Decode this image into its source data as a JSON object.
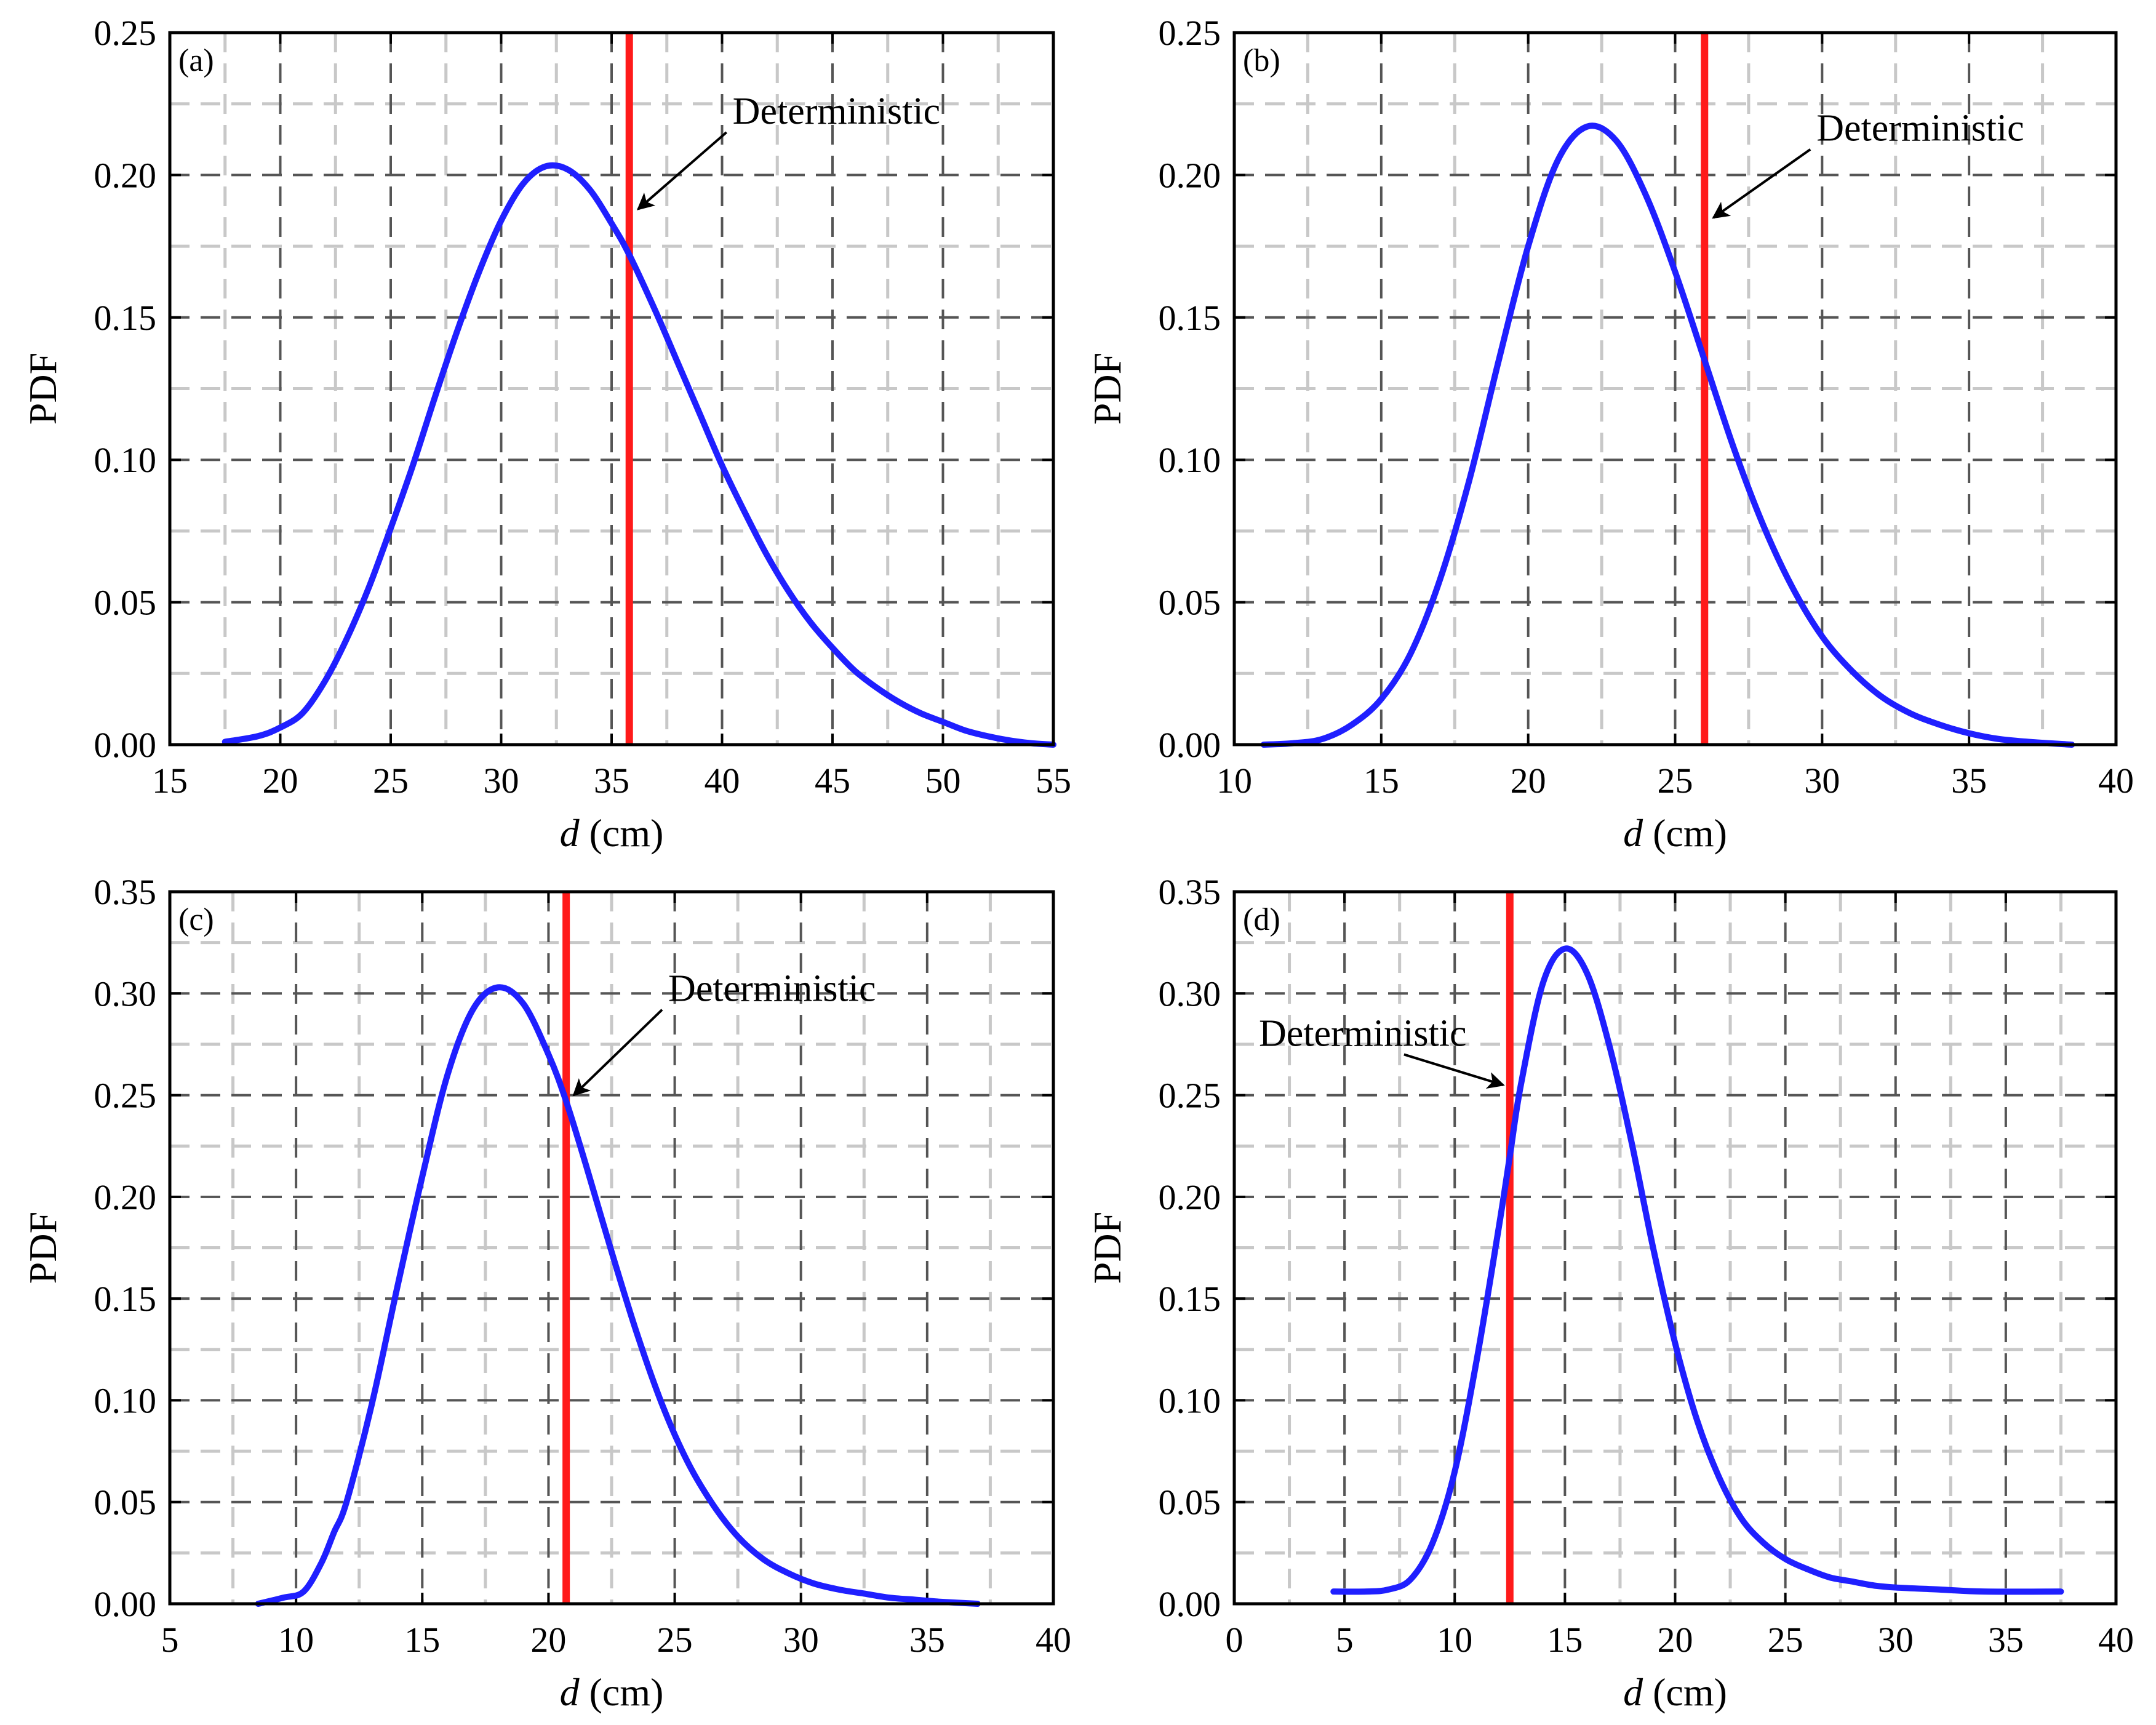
{
  "figure": {
    "y_axis_label": "PDF",
    "x_axis_label_var": "d",
    "x_axis_label_unit": " (cm)"
  },
  "colors": {
    "curve": "#1f1fff",
    "deterministic_line": "#ff1a1a",
    "grid_major": "#555555",
    "grid_minor": "#c8c8c8",
    "axis": "#000000"
  },
  "chart_data": [
    {
      "type": "line",
      "panel_label": "(a)",
      "xlabel": "d (cm)",
      "ylabel": "PDF",
      "xlim": [
        15,
        55
      ],
      "ylim": [
        0,
        0.25
      ],
      "xticks": [
        15,
        20,
        25,
        30,
        35,
        40,
        45,
        50,
        55
      ],
      "yticks": [
        0.0,
        0.05,
        0.1,
        0.15,
        0.2,
        0.25
      ],
      "xtick_labels": [
        "15",
        "20",
        "25",
        "30",
        "35",
        "40",
        "45",
        "50",
        "55"
      ],
      "ytick_labels": [
        "0.00",
        "0.05",
        "0.10",
        "0.15",
        "0.20",
        "0.25"
      ],
      "deterministic_x": 35.8,
      "annotation": {
        "text": "Deterministic",
        "arrow_from": [
          40.2,
          0.215
        ],
        "arrow_to": [
          36.2,
          0.188
        ]
      },
      "series": [
        {
          "name": "PDF",
          "x": [
            17.5,
            19,
            20,
            21,
            22,
            23,
            24,
            25,
            26,
            27,
            28,
            29,
            30,
            31,
            32,
            33,
            34,
            35,
            35.8,
            37,
            38,
            39,
            40,
            41,
            42,
            43,
            44,
            45,
            46,
            47,
            48,
            49,
            50,
            51,
            52,
            53,
            54,
            55
          ],
          "y": [
            0.001,
            0.003,
            0.006,
            0.011,
            0.022,
            0.037,
            0.055,
            0.076,
            0.098,
            0.122,
            0.145,
            0.166,
            0.184,
            0.197,
            0.203,
            0.202,
            0.195,
            0.183,
            0.172,
            0.152,
            0.134,
            0.116,
            0.098,
            0.082,
            0.067,
            0.054,
            0.043,
            0.034,
            0.026,
            0.02,
            0.015,
            0.011,
            0.008,
            0.005,
            0.003,
            0.0015,
            0.0005,
            0.0
          ]
        }
      ]
    },
    {
      "type": "line",
      "panel_label": "(b)",
      "xlabel": "d (cm)",
      "ylabel": "PDF",
      "xlim": [
        10,
        40
      ],
      "ylim": [
        0,
        0.25
      ],
      "xticks": [
        10,
        15,
        20,
        25,
        30,
        35,
        40
      ],
      "yticks": [
        0.0,
        0.05,
        0.1,
        0.15,
        0.2,
        0.25
      ],
      "xtick_labels": [
        "10",
        "15",
        "20",
        "25",
        "30",
        "35",
        "40"
      ],
      "ytick_labels": [
        "0.00",
        "0.05",
        "0.10",
        "0.15",
        "0.20",
        "0.25"
      ],
      "deterministic_x": 26.0,
      "annotation": {
        "text": "Deterministic",
        "arrow_from": [
          29.6,
          0.209
        ],
        "arrow_to": [
          26.3,
          0.185
        ]
      },
      "series": [
        {
          "name": "PDF",
          "x": [
            11,
            12,
            13,
            14,
            15,
            16,
            17,
            18,
            19,
            20,
            21,
            22,
            23,
            24,
            25,
            26,
            27,
            28,
            29,
            30,
            31,
            32,
            33,
            34,
            35,
            36,
            37,
            38.5
          ],
          "y": [
            0.0,
            0.0005,
            0.002,
            0.007,
            0.016,
            0.032,
            0.058,
            0.093,
            0.135,
            0.175,
            0.205,
            0.217,
            0.212,
            0.193,
            0.166,
            0.135,
            0.104,
            0.077,
            0.055,
            0.038,
            0.026,
            0.017,
            0.011,
            0.007,
            0.004,
            0.002,
            0.001,
            0.0
          ]
        }
      ]
    },
    {
      "type": "line",
      "panel_label": "(c)",
      "xlabel": "d (cm)",
      "ylabel": "PDF",
      "xlim": [
        5,
        40
      ],
      "ylim": [
        0,
        0.35
      ],
      "xticks": [
        5,
        10,
        15,
        20,
        25,
        30,
        35,
        40
      ],
      "yticks": [
        0.0,
        0.05,
        0.1,
        0.15,
        0.2,
        0.25,
        0.3,
        0.35
      ],
      "xtick_labels": [
        "5",
        "10",
        "15",
        "20",
        "25",
        "30",
        "35",
        "40"
      ],
      "ytick_labels": [
        "0.00",
        "0.05",
        "0.10",
        "0.15",
        "0.20",
        "0.25",
        "0.30",
        "0.35"
      ],
      "deterministic_x": 20.7,
      "annotation": {
        "text": "Deterministic",
        "arrow_from": [
          24.5,
          0.292
        ],
        "arrow_to": [
          21.0,
          0.25
        ]
      },
      "series": [
        {
          "name": "PDF",
          "x": [
            8.5,
            9.5,
            10.3,
            11,
            11.5,
            12,
            13,
            14,
            15,
            16,
            17,
            18,
            19,
            20,
            20.7,
            21.5,
            22.5,
            23.5,
            24.5,
            25.5,
            26.5,
            27.5,
            28.5,
            29.5,
            30.5,
            31.5,
            32.5,
            33.5,
            34.5,
            35.5,
            37
          ],
          "y": [
            0.0,
            0.003,
            0.006,
            0.02,
            0.035,
            0.05,
            0.098,
            0.155,
            0.21,
            0.26,
            0.292,
            0.303,
            0.295,
            0.27,
            0.247,
            0.215,
            0.173,
            0.133,
            0.098,
            0.07,
            0.049,
            0.033,
            0.022,
            0.015,
            0.01,
            0.007,
            0.005,
            0.003,
            0.002,
            0.001,
            0.0
          ]
        }
      ]
    },
    {
      "type": "line",
      "panel_label": "(d)",
      "xlabel": "d (cm)",
      "ylabel": "PDF",
      "xlim": [
        0,
        40
      ],
      "ylim": [
        0,
        0.35
      ],
      "xticks": [
        0,
        5,
        10,
        15,
        20,
        25,
        30,
        35,
        40
      ],
      "yticks": [
        0.0,
        0.05,
        0.1,
        0.15,
        0.2,
        0.25,
        0.3,
        0.35
      ],
      "xtick_labels": [
        "0",
        "5",
        "10",
        "15",
        "20",
        "25",
        "30",
        "35",
        "40"
      ],
      "ytick_labels": [
        "0.00",
        "0.05",
        "0.10",
        "0.15",
        "0.20",
        "0.25",
        "0.30",
        "0.35"
      ],
      "deterministic_x": 12.5,
      "annotation": {
        "text": "Deterministic",
        "arrow_from": [
          7.7,
          0.27
        ],
        "arrow_to": [
          12.2,
          0.255
        ]
      },
      "series": [
        {
          "name": "PDF",
          "x": [
            4.5,
            6,
            7,
            8,
            9,
            10,
            11,
            12,
            12.5,
            13,
            14,
            15,
            16,
            17,
            18,
            19,
            20,
            21,
            22,
            23,
            24,
            25,
            26,
            27,
            28,
            29,
            30,
            32,
            34,
            37.5
          ],
          "y": [
            0.006,
            0.006,
            0.007,
            0.012,
            0.03,
            0.065,
            0.12,
            0.185,
            0.22,
            0.255,
            0.305,
            0.322,
            0.31,
            0.275,
            0.228,
            0.175,
            0.128,
            0.09,
            0.062,
            0.042,
            0.03,
            0.022,
            0.017,
            0.013,
            0.011,
            0.009,
            0.008,
            0.007,
            0.006,
            0.006
          ]
        }
      ]
    }
  ]
}
